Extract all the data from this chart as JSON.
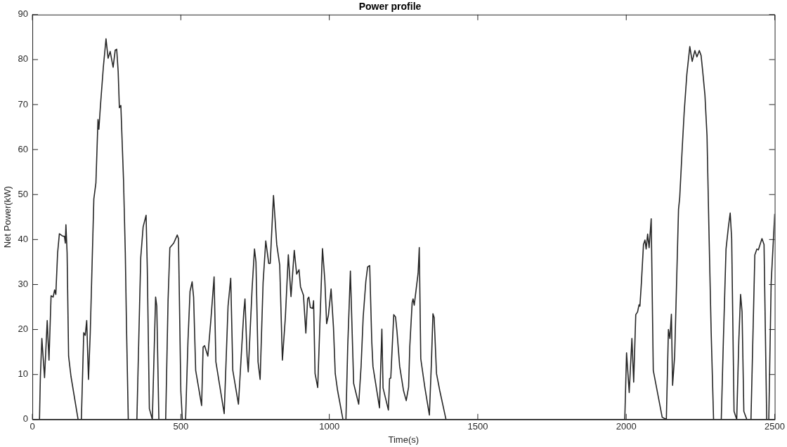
{
  "chart_data": {
    "type": "line",
    "title": "Power profile",
    "xlabel": "Time(s)",
    "ylabel": "Net Power(kW)",
    "xlim": [
      0,
      2500
    ],
    "xticks": [
      0,
      500,
      1000,
      1500,
      2000,
      2500
    ],
    "ylim": [
      0,
      90
    ],
    "yticks": [
      0,
      10,
      20,
      30,
      40,
      50,
      60,
      70,
      80,
      90
    ],
    "grid": false,
    "legend": false,
    "marker": "none",
    "line_style": "solid",
    "series": [
      {
        "color": "#262626",
        "x": [
          0,
          24,
          27,
          32,
          41,
          50,
          56,
          63,
          70,
          75,
          79,
          85,
          91,
          101,
          108,
          111,
          113,
          117,
          122,
          130,
          154,
          165,
          173,
          178,
          183,
          189,
          195,
          207,
          214,
          221,
          224,
          229,
          239,
          248,
          255,
          262,
          272,
          279,
          284,
          289,
          293,
          298,
          307,
          313,
          317,
          323,
          352,
          361,
          365,
          373,
          383,
          387,
          394,
          404,
          415,
          419,
          426,
          449,
          457,
          463,
          476,
          488,
          492,
          500,
          505,
          516,
          524,
          531,
          538,
          543,
          550,
          570,
          575,
          580,
          591,
          601,
          612,
          618,
          646,
          659,
          668,
          675,
          694,
          712,
          716,
          723,
          727,
          740,
          748,
          753,
          760,
          767,
          777,
          786,
          796,
          801,
          812,
          823,
          833,
          842,
          852,
          862,
          871,
          882,
          890,
          898,
          903,
          913,
          921,
          927,
          931,
          936,
          944,
          947,
          952,
          961,
          969,
          977,
          985,
          991,
          997,
          1006,
          1014,
          1020,
          1028,
          1046,
          1056,
          1062,
          1071,
          1082,
          1099,
          1107,
          1114,
          1123,
          1129,
          1136,
          1143,
          1147,
          1169,
          1177,
          1181,
          1199,
          1203,
          1207,
          1217,
          1223,
          1228,
          1237,
          1250,
          1259,
          1267,
          1271,
          1279,
          1282,
          1286,
          1292,
          1299,
          1303,
          1308,
          1322,
          1337,
          1344,
          1349,
          1353,
          1361,
          1372,
          1393,
          1995,
          2001,
          2010,
          2019,
          2025,
          2032,
          2038,
          2043,
          2046,
          2051,
          2058,
          2063,
          2067,
          2072,
          2077,
          2084,
          2091,
          2121,
          2135,
          2142,
          2147,
          2152,
          2156,
          2163,
          2176,
          2180,
          2188,
          2195,
          2204,
          2214,
          2222,
          2231,
          2238,
          2246,
          2252,
          2257,
          2265,
          2272,
          2278,
          2286,
          2294,
          2320,
          2327,
          2336,
          2344,
          2350,
          2355,
          2363,
          2372,
          2379,
          2385,
          2390,
          2396,
          2406,
          2420,
          2433,
          2440,
          2445,
          2457,
          2464,
          2473,
          2480,
          2488,
          2500
        ],
        "values": [
          0,
          0,
          9.6,
          18,
          9.3,
          22,
          13.2,
          27.5,
          27.2,
          28.8,
          27.8,
          37,
          41.3,
          40.8,
          40.7,
          39.2,
          43.3,
          37,
          14.1,
          9.6,
          0,
          0,
          19.3,
          18.7,
          22,
          8.9,
          19.3,
          49,
          52.6,
          66.7,
          64.5,
          69.5,
          78.3,
          84.6,
          80.3,
          81.8,
          78.3,
          82.1,
          82.3,
          77.3,
          69.3,
          69.8,
          53.2,
          37,
          20.7,
          0,
          0,
          25.2,
          36,
          42.8,
          45.4,
          33.7,
          2.4,
          0,
          27.2,
          25.2,
          0,
          0,
          26.5,
          38.2,
          39.2,
          41,
          40.2,
          6.3,
          0,
          0,
          17.4,
          28.5,
          30.6,
          27.2,
          10.9,
          3.1,
          16.1,
          16.4,
          14.1,
          22,
          31.7,
          12.8,
          1.3,
          25.2,
          31.4,
          10.9,
          3.4,
          23.9,
          26.8,
          14.1,
          10.6,
          29.1,
          37.9,
          35,
          12.8,
          8.9,
          30.4,
          39.7,
          34.7,
          34.7,
          49.8,
          38.9,
          34.3,
          13.2,
          22.7,
          36.6,
          27.3,
          37.6,
          32.3,
          33.3,
          29.5,
          27.6,
          19.2,
          26.8,
          27.2,
          24.9,
          24.7,
          26.4,
          10.2,
          7.1,
          22.7,
          38,
          30.9,
          21.3,
          23.2,
          29,
          20.5,
          10.2,
          6.4,
          0,
          0,
          16.2,
          33,
          8,
          3.4,
          11.8,
          22.7,
          30.7,
          33.9,
          34.2,
          17.3,
          11.8,
          2.6,
          20.1,
          7,
          2.1,
          9.1,
          9.2,
          23.3,
          22.8,
          19.5,
          11.8,
          6.4,
          4.2,
          7.2,
          16.2,
          26,
          26.8,
          25.4,
          28.7,
          32.5,
          38.2,
          13.5,
          7,
          1,
          12.9,
          23.5,
          22.7,
          10.2,
          6.4,
          0,
          0,
          14.8,
          6,
          18,
          8.3,
          23.3,
          23.9,
          25.5,
          25.2,
          30.4,
          38.9,
          39.9,
          37.9,
          41.2,
          38.2,
          44.6,
          10.9,
          0.5,
          0,
          20,
          18,
          23.4,
          7.6,
          14.1,
          46.7,
          49.3,
          59.7,
          68.2,
          76.7,
          82.9,
          79.6,
          82,
          80.6,
          82,
          80.9,
          77.7,
          72.1,
          63,
          43.5,
          19.3,
          0,
          0,
          17.4,
          37.9,
          42.8,
          45.9,
          40.2,
          1.8,
          0,
          17.4,
          27.8,
          23.9,
          1.8,
          0,
          0,
          36.6,
          37.9,
          37.7,
          40.2,
          38.9,
          0,
          0,
          30.4,
          45.7
        ]
      }
    ]
  }
}
